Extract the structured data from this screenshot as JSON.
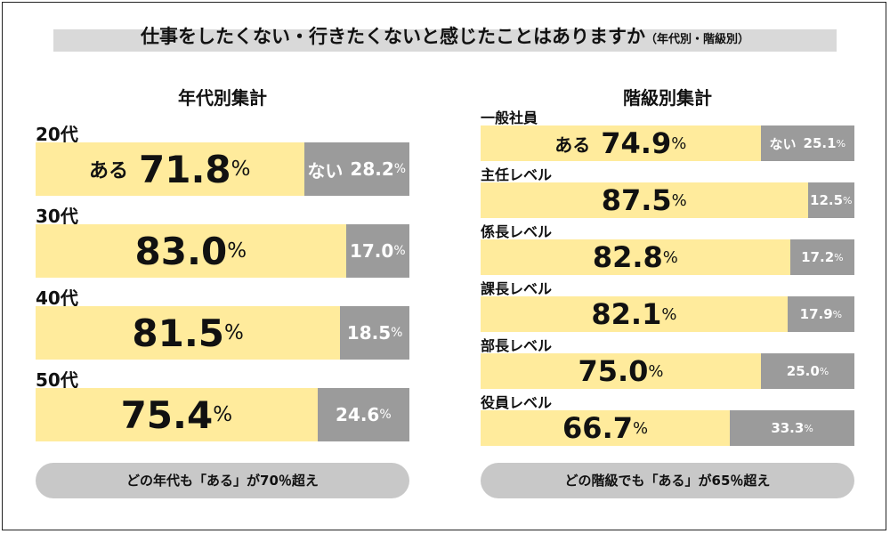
{
  "title": {
    "main": "仕事をしたくない・行きたくないと感じたことはありますか",
    "sub": "（年代別・階級別）"
  },
  "chart_data": [
    {
      "type": "bar",
      "orientation": "horizontal",
      "stacked": true,
      "title": "年代別集計",
      "categories": [
        "20代",
        "30代",
        "40代",
        "50代"
      ],
      "series": [
        {
          "name": "ある",
          "values": [
            71.8,
            83.0,
            81.5,
            75.4
          ]
        },
        {
          "name": "ない",
          "values": [
            28.2,
            17.0,
            18.5,
            24.6
          ]
        }
      ],
      "unit": "%",
      "xlim": [
        0,
        100
      ],
      "colors": {
        "yes": "#ffeb9c",
        "no": "#9b9b9b"
      },
      "footer": "どの年代も「ある」が70％超え"
    },
    {
      "type": "bar",
      "orientation": "horizontal",
      "stacked": true,
      "title": "階級別集計",
      "categories": [
        "一般社員",
        "主任レベル",
        "係長レベル",
        "課長レベル",
        "部長レベル",
        "役員レベル"
      ],
      "series": [
        {
          "name": "ある",
          "values": [
            74.9,
            87.5,
            82.8,
            82.1,
            75.0,
            66.7
          ]
        },
        {
          "name": "ない",
          "values": [
            25.1,
            12.5,
            17.2,
            17.9,
            25.0,
            33.3
          ]
        }
      ],
      "unit": "%",
      "xlim": [
        0,
        100
      ],
      "colors": {
        "yes": "#ffeb9c",
        "no": "#9b9b9b"
      },
      "footer": "どの階級でも「ある」が65％超え"
    }
  ]
}
